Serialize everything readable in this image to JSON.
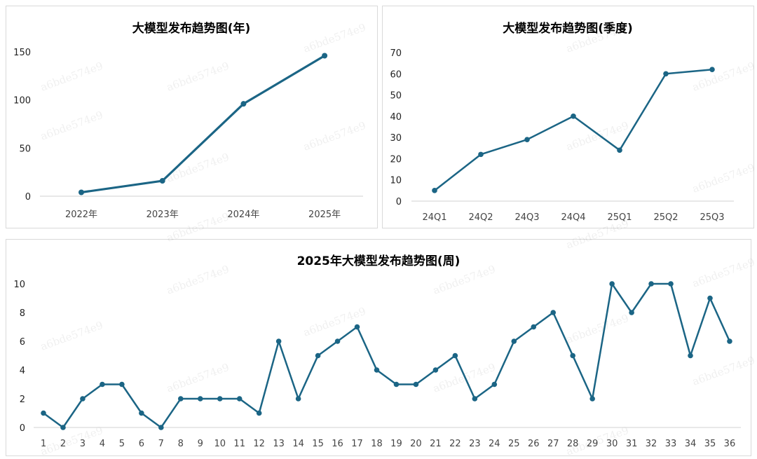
{
  "watermark": "a6bde574e9",
  "colors": {
    "line": "#1b6585",
    "axis": "#d9d9d9"
  },
  "chart_data": [
    {
      "type": "line",
      "title": "大模型发布趋势图(年)",
      "categories": [
        "2022年",
        "2023年",
        "2024年",
        "2025年"
      ],
      "values": [
        4,
        16,
        96,
        146
      ],
      "ylim": [
        0,
        150
      ],
      "yticks": [
        0,
        50,
        100,
        150
      ],
      "grid": false,
      "markers": true
    },
    {
      "type": "line",
      "title": "大模型发布趋势图(季度)",
      "categories": [
        "24Q1",
        "24Q2",
        "24Q3",
        "24Q4",
        "25Q1",
        "25Q2",
        "25Q3"
      ],
      "values": [
        5,
        22,
        29,
        40,
        24,
        60,
        62
      ],
      "ylim": [
        0,
        70
      ],
      "yticks": [
        0,
        10,
        20,
        30,
        40,
        50,
        60,
        70
      ],
      "grid": false,
      "markers": true
    },
    {
      "type": "line",
      "title": "2025年大模型发布趋势图(周)",
      "categories": [
        "1",
        "2",
        "3",
        "4",
        "5",
        "6",
        "7",
        "8",
        "9",
        "10",
        "11",
        "12",
        "13",
        "14",
        "15",
        "16",
        "17",
        "18",
        "19",
        "20",
        "21",
        "22",
        "23",
        "24",
        "25",
        "26",
        "27",
        "28",
        "29",
        "30",
        "31",
        "32",
        "33",
        "34",
        "35",
        "36"
      ],
      "values": [
        1,
        0,
        2,
        3,
        3,
        1,
        0,
        2,
        2,
        2,
        2,
        1,
        6,
        2,
        5,
        6,
        7,
        4,
        3,
        3,
        4,
        5,
        2,
        3,
        6,
        7,
        8,
        5,
        2,
        10,
        8,
        10,
        10,
        5,
        9,
        6
      ],
      "ylim": [
        0,
        10
      ],
      "yticks": [
        0,
        2,
        4,
        6,
        8,
        10
      ],
      "grid": false,
      "markers": true
    }
  ]
}
